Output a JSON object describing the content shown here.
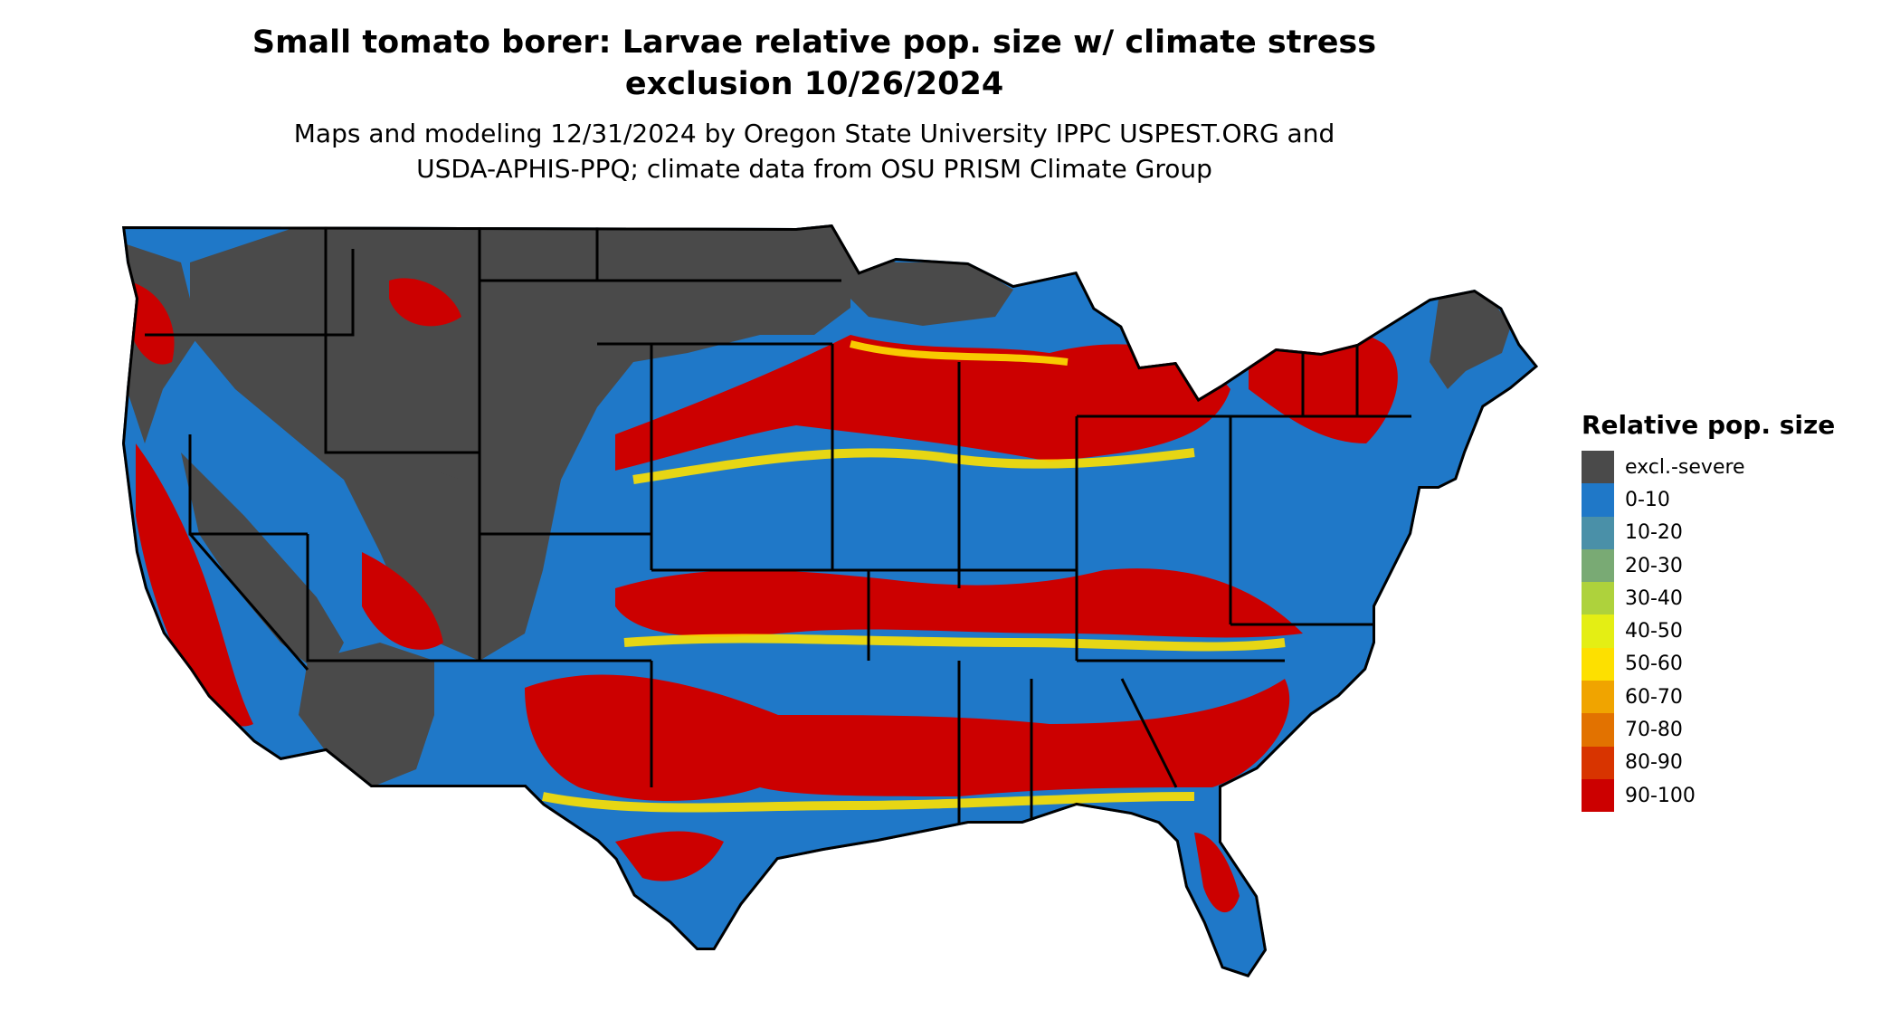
{
  "title_lines": [
    "Small tomato borer: Larvae relative pop. size w/ climate stress",
    "exclusion 10/26/2024"
  ],
  "subtitle_lines": [
    "Maps and modeling 12/31/2024 by Oregon State University IPPC USPEST.ORG and",
    "USDA-APHIS-PPQ; climate data from OSU PRISM Climate Group"
  ],
  "legend": {
    "title": "Relative pop. size",
    "items": [
      {
        "label": "excl.-severe",
        "color": "#4a4a4a"
      },
      {
        "label": "0-10",
        "color": "#1f78c8"
      },
      {
        "label": "10-20",
        "color": "#4a90a8"
      },
      {
        "label": "20-30",
        "color": "#79aa74"
      },
      {
        "label": "30-40",
        "color": "#aed23c"
      },
      {
        "label": "40-50",
        "color": "#e4ee14"
      },
      {
        "label": "50-60",
        "color": "#fde000"
      },
      {
        "label": "60-70",
        "color": "#f0a400"
      },
      {
        "label": "70-80",
        "color": "#e27200"
      },
      {
        "label": "80-90",
        "color": "#d83400"
      },
      {
        "label": "90-100",
        "color": "#cc0000"
      }
    ]
  },
  "map": {
    "region": "contiguous-united-states",
    "colors": {
      "excluded": "#4a4a4a",
      "low": "#1f78c8",
      "high": "#cc0000",
      "mid": "#fde000",
      "orange": "#f0a400",
      "boundary": "#000000"
    }
  }
}
